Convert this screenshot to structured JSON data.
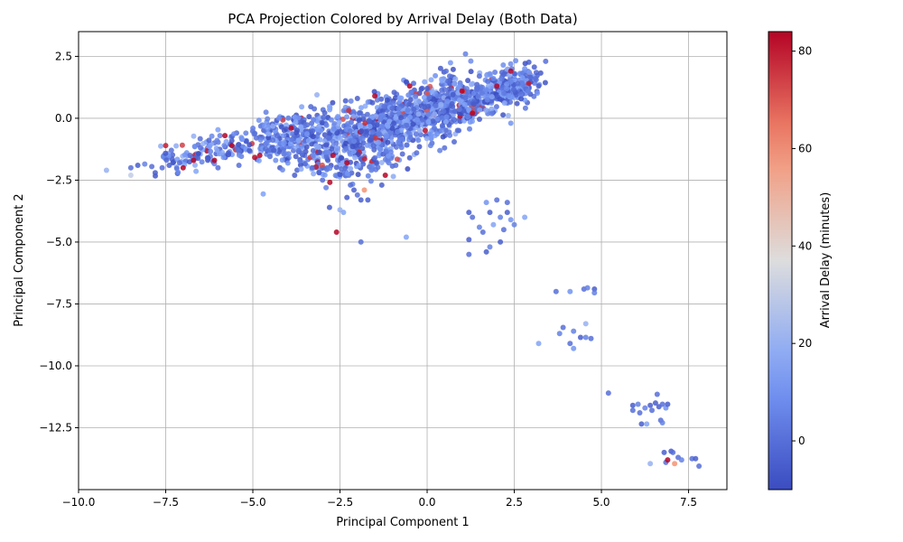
{
  "chart_data": {
    "type": "scatter",
    "title": "PCA Projection Colored by Arrival Delay (Both Data)",
    "xlabel": "Principal Component 1",
    "ylabel": "Principal Component 2",
    "xlim": [
      -10,
      8.6
    ],
    "ylim": [
      -15,
      3.5
    ],
    "xticks": [
      -10.0,
      -7.5,
      -5.0,
      -2.5,
      0.0,
      2.5,
      5.0,
      7.5
    ],
    "xtick_labels": [
      "−10.0",
      "−7.5",
      "−5.0",
      "−2.5",
      "0.0",
      "2.5",
      "5.0",
      "7.5"
    ],
    "yticks": [
      2.5,
      0.0,
      -2.5,
      -5.0,
      -7.5,
      -10.0,
      -12.5
    ],
    "ytick_labels": [
      "2.5",
      "0.0",
      "−2.5",
      "−5.0",
      "−7.5",
      "−10.0",
      "−12.5"
    ],
    "grid": true,
    "colormap": "coolwarm",
    "colorbar": {
      "label": "Arrival Delay (minutes)",
      "range": [
        -10,
        84
      ],
      "ticks": [
        0,
        20,
        40,
        60,
        80
      ],
      "tick_labels": [
        "0",
        "20",
        "40",
        "60",
        "80"
      ]
    },
    "points": [
      [
        -9.2,
        -2.1,
        20
      ],
      [
        -8.5,
        -2.3,
        30
      ],
      [
        -8.5,
        -2.0,
        0
      ],
      [
        -8.3,
        -1.9,
        -5
      ],
      [
        -8.1,
        -1.85,
        5
      ],
      [
        -7.9,
        -1.95,
        0
      ],
      [
        -7.8,
        -2.2,
        -5
      ],
      [
        -7.6,
        -2.0,
        0
      ],
      [
        -7.5,
        -1.1,
        80
      ],
      [
        -7.4,
        -1.9,
        -5
      ],
      [
        -7.1,
        -1.8,
        0
      ],
      [
        -7.0,
        -2.0,
        84
      ],
      [
        -6.8,
        -1.5,
        0
      ],
      [
        -6.7,
        -1.7,
        84
      ],
      [
        -6.5,
        -1.2,
        0
      ],
      [
        -6.3,
        -1.6,
        -5
      ],
      [
        -6.1,
        -1.7,
        84
      ],
      [
        -6.0,
        -2.0,
        0
      ],
      [
        -5.8,
        -0.7,
        84
      ],
      [
        -5.7,
        -1.4,
        -5
      ],
      [
        -5.6,
        -1.1,
        84
      ],
      [
        -5.4,
        -1.9,
        0
      ],
      [
        -5.2,
        -0.6,
        5
      ],
      [
        -5.1,
        -1.3,
        -5
      ],
      [
        -4.9,
        -0.8,
        0
      ],
      [
        -4.8,
        -1.5,
        84
      ],
      [
        -4.6,
        -1.0,
        5
      ],
      [
        -4.4,
        -1.3,
        -5
      ],
      [
        -4.3,
        -0.7,
        0
      ],
      [
        -4.1,
        -1.0,
        10
      ],
      [
        -3.9,
        -0.4,
        84
      ],
      [
        -3.8,
        -2.3,
        -5
      ],
      [
        -3.6,
        -1.4,
        0
      ],
      [
        -3.4,
        -0.9,
        15
      ],
      [
        -3.3,
        -2.0,
        0
      ],
      [
        -3.1,
        -2.2,
        -5
      ],
      [
        -3.0,
        -2.5,
        0
      ],
      [
        -2.9,
        -2.8,
        5
      ],
      [
        -2.8,
        -3.6,
        -5
      ],
      [
        -2.7,
        -1.5,
        84
      ],
      [
        -2.6,
        -4.6,
        84
      ],
      [
        -2.5,
        -3.7,
        20
      ],
      [
        -2.4,
        -3.8,
        15
      ],
      [
        -2.3,
        -3.2,
        -5
      ],
      [
        -2.3,
        -1.8,
        84
      ],
      [
        -2.2,
        -2.7,
        0
      ],
      [
        -2.1,
        -2.9,
        -5
      ],
      [
        -2.0,
        -3.1,
        0
      ],
      [
        -1.9,
        -5.0,
        0
      ],
      [
        -1.9,
        -3.3,
        -5
      ],
      [
        -1.8,
        -2.9,
        60
      ],
      [
        -1.7,
        -3.3,
        -5
      ],
      [
        -1.6,
        -2.1,
        5
      ],
      [
        -1.5,
        -1.6,
        0
      ],
      [
        -1.3,
        -2.7,
        -5
      ],
      [
        -1.2,
        -2.3,
        84
      ],
      [
        -1.1,
        -1.8,
        5
      ],
      [
        -0.9,
        -1.9,
        0
      ],
      [
        -0.6,
        -4.8,
        15
      ],
      [
        -0.5,
        -1.6,
        -5
      ],
      [
        -0.3,
        -1.4,
        0
      ],
      [
        0.1,
        -1.1,
        5
      ],
      [
        0.5,
        -1.2,
        0
      ],
      [
        -2.0,
        0.8,
        -5
      ],
      [
        -1.5,
        0.9,
        84
      ],
      [
        -1.0,
        0.4,
        0
      ],
      [
        -0.5,
        1.3,
        84
      ],
      [
        0.0,
        1.2,
        -5
      ],
      [
        0.3,
        0.9,
        5
      ],
      [
        0.6,
        1.5,
        0
      ],
      [
        1.0,
        1.1,
        84
      ],
      [
        1.1,
        2.6,
        5
      ],
      [
        1.3,
        0.2,
        84
      ],
      [
        1.5,
        1.7,
        0
      ],
      [
        1.8,
        1.8,
        10
      ],
      [
        2.0,
        1.3,
        84
      ],
      [
        2.2,
        1.0,
        5
      ],
      [
        2.4,
        1.9,
        84
      ],
      [
        2.6,
        1.4,
        0
      ],
      [
        2.8,
        2.0,
        10
      ],
      [
        3.1,
        1.6,
        0
      ],
      [
        3.4,
        2.3,
        0
      ],
      [
        3.2,
        1.3,
        -5
      ],
      [
        2.9,
        1.1,
        5
      ],
      [
        2.4,
        -0.2,
        10
      ],
      [
        1.2,
        -3.8,
        -5
      ],
      [
        1.3,
        -4.0,
        0
      ],
      [
        1.5,
        -4.4,
        5
      ],
      [
        1.6,
        -4.6,
        0
      ],
      [
        1.7,
        -3.4,
        10
      ],
      [
        1.8,
        -3.8,
        -5
      ],
      [
        1.9,
        -4.3,
        15
      ],
      [
        2.0,
        -3.3,
        0
      ],
      [
        2.1,
        -4.0,
        5
      ],
      [
        2.2,
        -4.5,
        0
      ],
      [
        2.3,
        -3.8,
        -5
      ],
      [
        2.4,
        -4.1,
        10
      ],
      [
        2.5,
        -4.3,
        5
      ],
      [
        2.8,
        -4.0,
        15
      ],
      [
        1.2,
        -4.9,
        -5
      ],
      [
        1.2,
        -5.5,
        0
      ],
      [
        1.7,
        -5.4,
        -5
      ],
      [
        1.8,
        -5.2,
        5
      ],
      [
        2.1,
        -5.0,
        -5
      ],
      [
        2.3,
        -3.4,
        0
      ],
      [
        3.7,
        -7.0,
        0
      ],
      [
        4.1,
        -7.0,
        10
      ],
      [
        4.5,
        -6.9,
        0
      ],
      [
        4.6,
        -6.85,
        5
      ],
      [
        4.8,
        -6.9,
        -5
      ],
      [
        4.8,
        -7.05,
        5
      ],
      [
        3.2,
        -9.1,
        15
      ],
      [
        3.8,
        -8.7,
        5
      ],
      [
        3.9,
        -8.45,
        0
      ],
      [
        4.1,
        -9.1,
        0
      ],
      [
        4.2,
        -9.3,
        10
      ],
      [
        4.2,
        -8.6,
        5
      ],
      [
        4.4,
        -8.85,
        -5
      ],
      [
        4.55,
        -8.3,
        20
      ],
      [
        4.55,
        -8.85,
        5
      ],
      [
        4.7,
        -8.9,
        0
      ],
      [
        5.2,
        -11.1,
        0
      ],
      [
        5.9,
        -11.6,
        -5
      ],
      [
        5.9,
        -11.8,
        0
      ],
      [
        6.05,
        -11.55,
        5
      ],
      [
        6.1,
        -11.9,
        0
      ],
      [
        6.15,
        -12.35,
        -5
      ],
      [
        6.25,
        -11.7,
        5
      ],
      [
        6.3,
        -12.35,
        15
      ],
      [
        6.4,
        -11.6,
        -5
      ],
      [
        6.45,
        -11.8,
        0
      ],
      [
        6.55,
        -11.5,
        -5
      ],
      [
        6.6,
        -11.15,
        0
      ],
      [
        6.65,
        -11.65,
        -5
      ],
      [
        6.7,
        -12.2,
        0
      ],
      [
        6.75,
        -12.3,
        5
      ],
      [
        6.75,
        -11.55,
        0
      ],
      [
        6.85,
        -11.7,
        10
      ],
      [
        6.9,
        -11.55,
        -5
      ],
      [
        6.4,
        -13.95,
        20
      ],
      [
        6.8,
        -13.5,
        -5
      ],
      [
        6.85,
        -13.9,
        0
      ],
      [
        6.9,
        -13.8,
        84
      ],
      [
        7.0,
        -13.45,
        -5
      ],
      [
        7.05,
        -13.5,
        0
      ],
      [
        7.1,
        -13.95,
        60
      ],
      [
        7.2,
        -13.7,
        0
      ],
      [
        7.3,
        -13.8,
        5
      ],
      [
        7.6,
        -13.75,
        0
      ],
      [
        7.7,
        -13.75,
        -5
      ],
      [
        7.8,
        -14.05,
        0
      ]
    ],
    "point_cloud": {
      "segments": [
        {
          "x": [
            -7.5,
            -4.5
          ],
          "y": [
            -1.6,
            -0.9
          ],
          "spread_x": 0.25,
          "spread_y": 0.3,
          "count": 150
        },
        {
          "x": [
            -4.5,
            -1.5
          ],
          "y": [
            -1.0,
            -0.5
          ],
          "spread_x": 0.3,
          "spread_y": 0.55,
          "count": 480
        },
        {
          "x": [
            -1.5,
            1.0
          ],
          "y": [
            -0.4,
            0.7
          ],
          "spread_x": 0.3,
          "spread_y": 0.55,
          "count": 700
        },
        {
          "x": [
            1.0,
            3.0
          ],
          "y": [
            0.6,
            1.5
          ],
          "spread_x": 0.3,
          "spread_y": 0.35,
          "count": 350
        },
        {
          "x": [
            -3.5,
            -1.2
          ],
          "y": [
            -2.2,
            -1.8
          ],
          "spread_x": 0.3,
          "spread_y": 0.25,
          "count": 80
        }
      ],
      "delay_mix": {
        "low": [
          -10,
          20
        ],
        "high": [
          70,
          84
        ],
        "share_high": 0.035
      }
    }
  }
}
